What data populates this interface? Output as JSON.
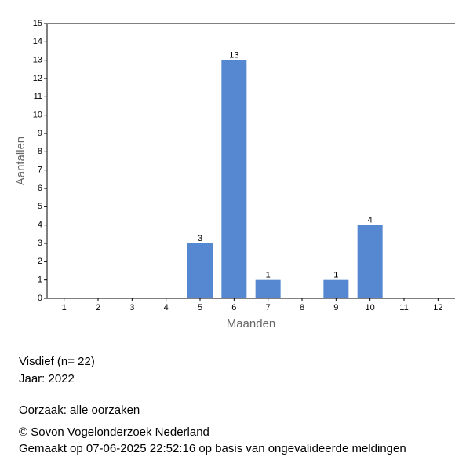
{
  "chart_data": {
    "type": "bar",
    "categories": [
      "1",
      "2",
      "3",
      "4",
      "5",
      "6",
      "7",
      "8",
      "9",
      "10",
      "11",
      "12"
    ],
    "values": [
      0,
      0,
      0,
      0,
      3,
      13,
      1,
      0,
      1,
      4,
      0,
      0
    ],
    "color": "#5588d0",
    "x_label": "Maanden",
    "y_label": "Aantallen",
    "ylim": [
      0,
      15
    ],
    "yticks": [
      0,
      1,
      2,
      3,
      4,
      5,
      6,
      7,
      8,
      9,
      10,
      11,
      12,
      13,
      14,
      15
    ],
    "grid": false
  },
  "info": {
    "species": "Visdief  (n= 22)",
    "year": "Jaar: 2022",
    "cause": "Oorzaak: alle oorzaken",
    "copyright": "© Sovon Vogelonderzoek Nederland",
    "created": "Gemaakt op 07-06-2025 22:52:16 op basis van ongevalideerde meldingen"
  }
}
